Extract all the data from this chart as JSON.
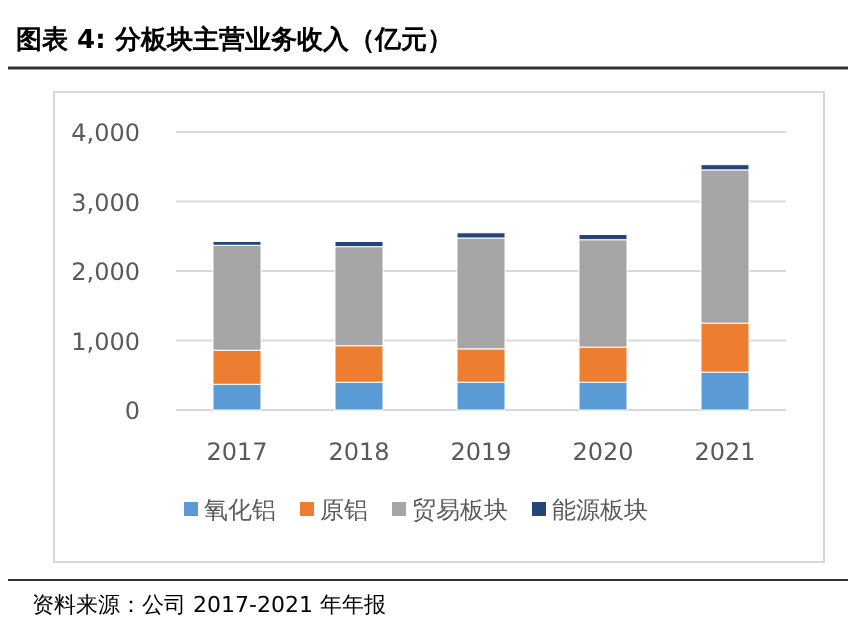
{
  "chart_data": {
    "type": "bar",
    "stacked": true,
    "title": "图表 4:  分板块主营业务收入（亿元）",
    "categories": [
      "2017",
      "2018",
      "2019",
      "2020",
      "2021"
    ],
    "series": [
      {
        "name": "氧化铝",
        "color": "#5b9bd5",
        "values": [
          370,
          400,
          400,
          400,
          545
        ]
      },
      {
        "name": "原铝",
        "color": "#ed7d31",
        "values": [
          490,
          525,
          480,
          505,
          705
        ]
      },
      {
        "name": "贸易板块",
        "color": "#a5a5a5",
        "values": [
          1510,
          1425,
          1595,
          1545,
          2205
        ]
      },
      {
        "name": "能源板块",
        "color": "#264478",
        "values": [
          55,
          75,
          75,
          75,
          75
        ]
      }
    ],
    "ylim": [
      0,
      4000
    ],
    "yticks": [
      {
        "value": 0,
        "label": "0"
      },
      {
        "value": 1000,
        "label": "1,000"
      },
      {
        "value": 2000,
        "label": "2,000"
      },
      {
        "value": 3000,
        "label": "3,000"
      },
      {
        "value": 4000,
        "label": "4,000"
      }
    ],
    "grid": "y",
    "legend": "bottom",
    "annotations": [
      "资料来源：公司 2017-2021 年年报"
    ]
  }
}
